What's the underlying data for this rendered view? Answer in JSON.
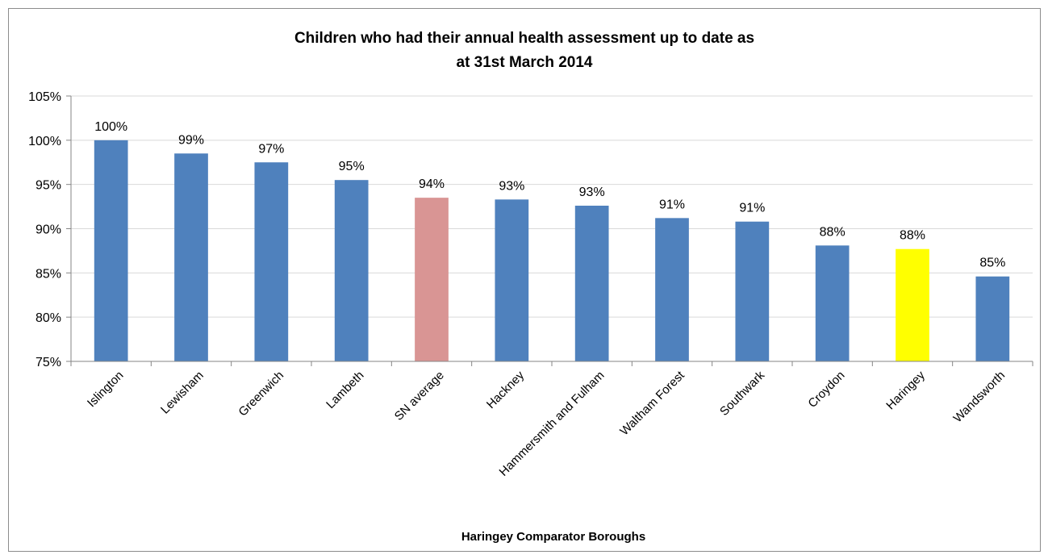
{
  "chart_data": {
    "type": "bar",
    "title": [
      "Children who had their annual health assessment up to date as",
      "at 31st March 2014"
    ],
    "xlabel": "Haringey Comparator Boroughs",
    "ylabel": "",
    "ylim": [
      0.75,
      1.05
    ],
    "y_ticks": [
      "75%",
      "80%",
      "85%",
      "90%",
      "95%",
      "100%",
      "105%"
    ],
    "grid": true,
    "categories": [
      "Islington",
      "Lewisham",
      "Greenwich",
      "Lambeth",
      "SN average",
      "Hackney",
      "Hammersmith and Fulham",
      "Waltham Forest",
      "Southwark",
      "Croydon",
      "Haringey",
      "Wandsworth"
    ],
    "values": [
      1.0,
      0.985,
      0.975,
      0.955,
      0.935,
      0.933,
      0.926,
      0.912,
      0.908,
      0.881,
      0.877,
      0.846
    ],
    "data_labels": [
      "100%",
      "99%",
      "97%",
      "95%",
      "94%",
      "93%",
      "93%",
      "91%",
      "91%",
      "88%",
      "88%",
      "85%"
    ],
    "colors": [
      "#4f81bd",
      "#4f81bd",
      "#4f81bd",
      "#4f81bd",
      "#d99594",
      "#4f81bd",
      "#4f81bd",
      "#4f81bd",
      "#4f81bd",
      "#4f81bd",
      "#ffff00",
      "#4f81bd"
    ]
  }
}
